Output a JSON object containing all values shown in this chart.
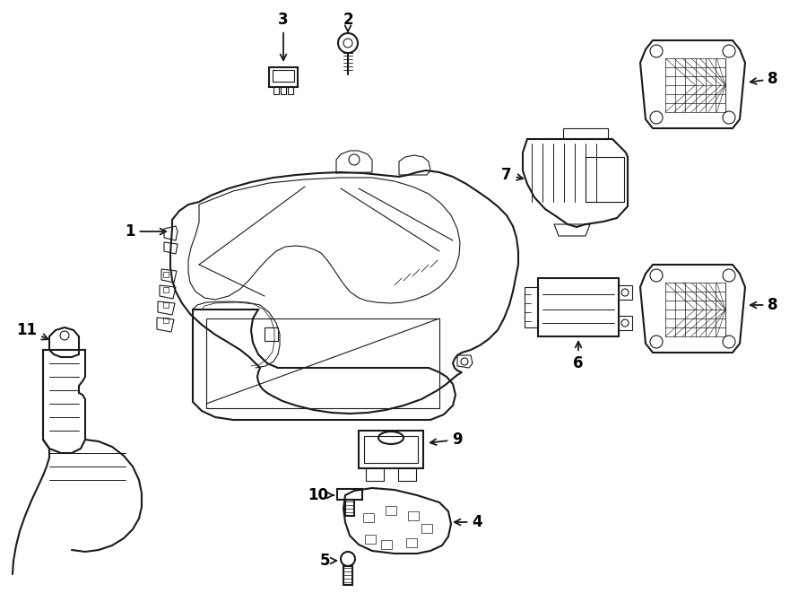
{
  "background_color": "#ffffff",
  "line_color": "#1a1a1a",
  "text_color": "#000000",
  "fig_width": 9.0,
  "fig_height": 6.61,
  "dpi": 100
}
